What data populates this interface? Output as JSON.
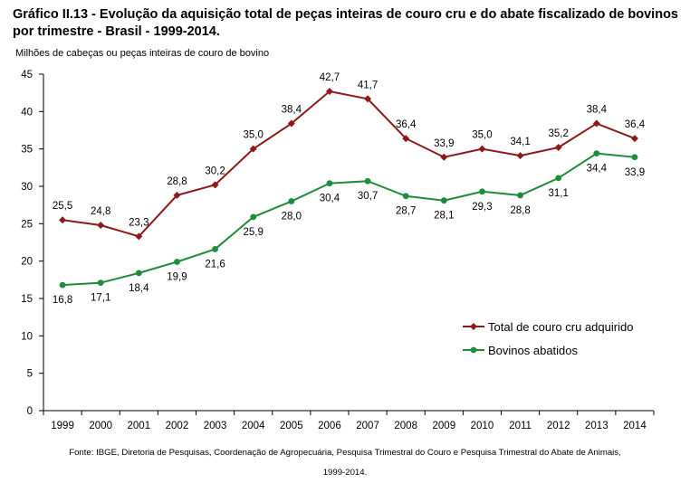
{
  "title": "Gráfico II.13 - Evolução da aquisição total de peças inteiras de couro cru e do abate fiscalizado de bovinos por trimestre - Brasil - 1999-2014.",
  "source": {
    "line1": "Fonte: IBGE, Diretoria de Pesquisas, Coordenação de Agropecuária, Pesquisa Trimestral do Couro e Pesquisa Trimestral do Abate de Animais,",
    "line2": "1999-2014."
  },
  "chart_data": {
    "type": "line",
    "title": "Gráfico II.13 - Evolução da aquisição total de peças inteiras de couro cru e do abate fiscalizado de bovinos por trimestre - Brasil - 1999-2014.",
    "ylabel": "Milhões de cabeças ou peças inteiras de couro de bovino",
    "xlabel": "",
    "categories": [
      "1999",
      "2000",
      "2001",
      "2002",
      "2003",
      "2004",
      "2005",
      "2006",
      "2007",
      "2008",
      "2009",
      "2010",
      "2011",
      "2012",
      "2013",
      "2014"
    ],
    "yticks": [
      "0",
      "5",
      "10",
      "15",
      "20",
      "25",
      "30",
      "35",
      "40",
      "45"
    ],
    "ylim": [
      0,
      45
    ],
    "grid": false,
    "legend_position": "right",
    "series": [
      {
        "name": "Total de couro cru adquirido",
        "color": "#8B1A1A",
        "marker": "diamond",
        "values": [
          25.5,
          24.8,
          23.3,
          28.8,
          30.2,
          35.0,
          38.4,
          42.7,
          41.7,
          36.4,
          33.9,
          35.0,
          34.1,
          35.2,
          38.4,
          36.4
        ],
        "labels": [
          "25,5",
          "24,8",
          "23,3",
          "28,8",
          "30,2",
          "35,0",
          "38,4",
          "42,7",
          "41,7",
          "36,4",
          "33,9",
          "35,0",
          "34,1",
          "35,2",
          "38,4",
          "36,4"
        ]
      },
      {
        "name": "Bovinos abatidos",
        "color": "#1E8C3A",
        "marker": "circle",
        "values": [
          16.8,
          17.1,
          18.4,
          19.9,
          21.6,
          25.9,
          28.0,
          30.4,
          30.7,
          28.7,
          28.1,
          29.3,
          28.8,
          31.1,
          34.4,
          33.9
        ],
        "labels": [
          "16,8",
          "17,1",
          "18,4",
          "19,9",
          "21,6",
          "25,9",
          "28,0",
          "30,4",
          "30,7",
          "28,7",
          "28,1",
          "29,3",
          "28,8",
          "31,1",
          "34,4",
          "33,9"
        ]
      }
    ]
  }
}
